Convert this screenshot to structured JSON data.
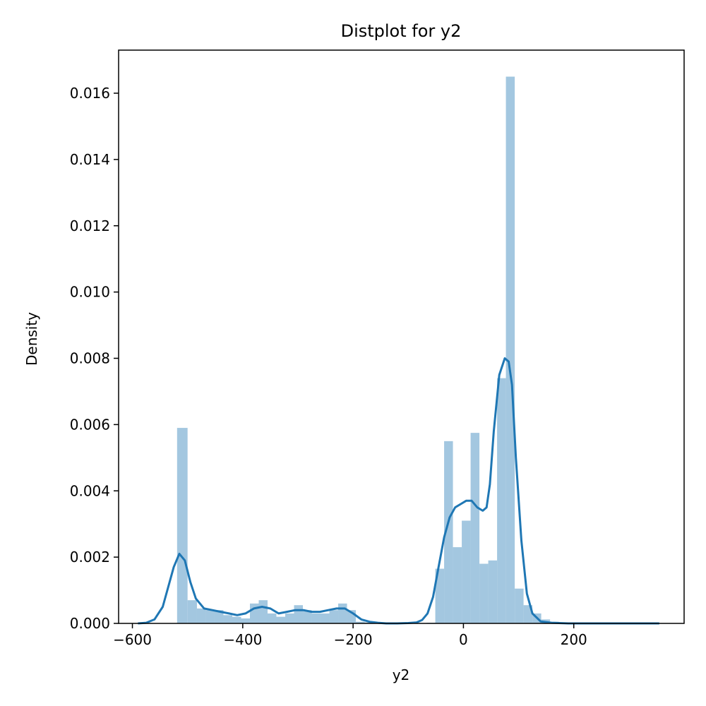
{
  "chart_data": {
    "type": "bar",
    "title": "Distplot for y2",
    "xlabel": "y2",
    "ylabel": "Density",
    "xlim": [
      -625,
      400
    ],
    "ylim": [
      0,
      0.0173
    ],
    "xticks": [
      -600,
      -400,
      -200,
      0,
      200
    ],
    "xtick_labels": [
      "−600",
      "−400",
      "−200",
      "0",
      "200"
    ],
    "yticks": [
      0.0,
      0.002,
      0.004,
      0.006,
      0.008,
      0.01,
      0.012,
      0.014,
      0.016
    ],
    "ytick_labels": [
      "0.000",
      "0.002",
      "0.004",
      "0.006",
      "0.008",
      "0.010",
      "0.012",
      "0.014",
      "0.016"
    ],
    "grid": false,
    "histogram": {
      "color": "#a3c7e0",
      "bins": [
        {
          "x0": -519,
          "x1": -500,
          "density": 0.0059
        },
        {
          "x0": -500,
          "x1": -483,
          "density": 0.0007
        },
        {
          "x0": -483,
          "x1": -467,
          "density": 0.00045
        },
        {
          "x0": -467,
          "x1": -451,
          "density": 0.0004
        },
        {
          "x0": -451,
          "x1": -435,
          "density": 0.0004
        },
        {
          "x0": -435,
          "x1": -419,
          "density": 0.00025
        },
        {
          "x0": -419,
          "x1": -403,
          "density": 0.0002
        },
        {
          "x0": -403,
          "x1": -387,
          "density": 0.00015
        },
        {
          "x0": -387,
          "x1": -371,
          "density": 0.0006
        },
        {
          "x0": -371,
          "x1": -355,
          "density": 0.0007
        },
        {
          "x0": -355,
          "x1": -339,
          "density": 0.0003
        },
        {
          "x0": -339,
          "x1": -323,
          "density": 0.0002
        },
        {
          "x0": -323,
          "x1": -307,
          "density": 0.0003
        },
        {
          "x0": -307,
          "x1": -291,
          "density": 0.00055
        },
        {
          "x0": -291,
          "x1": -275,
          "density": 0.0004
        },
        {
          "x0": -275,
          "x1": -259,
          "density": 0.0003
        },
        {
          "x0": -259,
          "x1": -243,
          "density": 0.0003
        },
        {
          "x0": -243,
          "x1": -227,
          "density": 0.0004
        },
        {
          "x0": -227,
          "x1": -211,
          "density": 0.0006
        },
        {
          "x0": -211,
          "x1": -195,
          "density": 0.0004
        },
        {
          "x0": -195,
          "x1": -179,
          "density": 5e-05
        },
        {
          "x0": -179,
          "x1": -163,
          "density": 3e-05
        },
        {
          "x0": -163,
          "x1": -147,
          "density": 0.0
        },
        {
          "x0": -147,
          "x1": -131,
          "density": 0.0
        },
        {
          "x0": -131,
          "x1": -115,
          "density": 0.0
        },
        {
          "x0": -115,
          "x1": -99,
          "density": 0.0
        },
        {
          "x0": -99,
          "x1": -83,
          "density": 0.0
        },
        {
          "x0": -83,
          "x1": -67,
          "density": 0.0
        },
        {
          "x0": -67,
          "x1": -51,
          "density": 2e-05
        },
        {
          "x0": -51,
          "x1": -35,
          "density": 0.00165
        },
        {
          "x0": -35,
          "x1": -19,
          "density": 0.0055
        },
        {
          "x0": -19,
          "x1": -3,
          "density": 0.0023
        },
        {
          "x0": -3,
          "x1": 13,
          "density": 0.0031
        },
        {
          "x0": 13,
          "x1": 29,
          "density": 0.00575
        },
        {
          "x0": 29,
          "x1": 45,
          "density": 0.0018
        },
        {
          "x0": 45,
          "x1": 61,
          "density": 0.0019
        },
        {
          "x0": 61,
          "x1": 77,
          "density": 0.0074
        },
        {
          "x0": 77,
          "x1": 93,
          "density": 0.0165
        },
        {
          "x0": 93,
          "x1": 109,
          "density": 0.00105
        },
        {
          "x0": 109,
          "x1": 125,
          "density": 0.00055
        },
        {
          "x0": 125,
          "x1": 141,
          "density": 0.0003
        },
        {
          "x0": 141,
          "x1": 157,
          "density": 0.00012
        },
        {
          "x0": 157,
          "x1": 173,
          "density": 5e-05
        },
        {
          "x0": 173,
          "x1": 189,
          "density": 3e-05
        },
        {
          "x0": 189,
          "x1": 205,
          "density": 2e-05
        },
        {
          "x0": 205,
          "x1": 221,
          "density": 2e-05
        },
        {
          "x0": 221,
          "x1": 237,
          "density": 1e-05
        },
        {
          "x0": 237,
          "x1": 253,
          "density": 1e-05
        },
        {
          "x0": 253,
          "x1": 269,
          "density": 1e-05
        },
        {
          "x0": 269,
          "x1": 285,
          "density": 1e-05
        },
        {
          "x0": 285,
          "x1": 301,
          "density": 1e-05
        },
        {
          "x0": 301,
          "x1": 317,
          "density": 1e-05
        },
        {
          "x0": 317,
          "x1": 333,
          "density": 1e-05
        },
        {
          "x0": 333,
          "x1": 349,
          "density": 1e-05
        },
        {
          "x0": 349,
          "x1": 355,
          "density": 1e-05
        }
      ]
    },
    "kde": {
      "color": "#1f77b4",
      "x": [
        -590,
        -575,
        -560,
        -545,
        -535,
        -525,
        -515,
        -505,
        -495,
        -485,
        -470,
        -455,
        -440,
        -425,
        -410,
        -395,
        -380,
        -365,
        -350,
        -335,
        -320,
        -305,
        -290,
        -275,
        -260,
        -245,
        -230,
        -215,
        -200,
        -185,
        -170,
        -155,
        -140,
        -120,
        -100,
        -85,
        -75,
        -65,
        -55,
        -45,
        -35,
        -25,
        -15,
        -5,
        5,
        15,
        25,
        35,
        42,
        48,
        55,
        65,
        75,
        82,
        88,
        95,
        105,
        115,
        125,
        140,
        160,
        190,
        240,
        300,
        355
      ],
      "y": [
        0.0,
        2e-05,
        0.00012,
        0.0005,
        0.0011,
        0.0017,
        0.0021,
        0.0019,
        0.00125,
        0.00075,
        0.00045,
        0.0004,
        0.00035,
        0.0003,
        0.00025,
        0.0003,
        0.00045,
        0.0005,
        0.00045,
        0.0003,
        0.00035,
        0.0004,
        0.0004,
        0.00035,
        0.00035,
        0.0004,
        0.00045,
        0.00045,
        0.0003,
        0.00012,
        5e-05,
        2e-05,
        0.0,
        0.0,
        1e-05,
        3e-05,
        0.0001,
        0.0003,
        0.0008,
        0.0017,
        0.0026,
        0.0032,
        0.0035,
        0.0036,
        0.0037,
        0.0037,
        0.0035,
        0.0034,
        0.0035,
        0.0042,
        0.0058,
        0.0075,
        0.008,
        0.0079,
        0.0072,
        0.005,
        0.0025,
        0.0009,
        0.0003,
        6e-05,
        2e-05,
        0.0,
        0.0,
        0.0,
        0.0
      ]
    }
  }
}
